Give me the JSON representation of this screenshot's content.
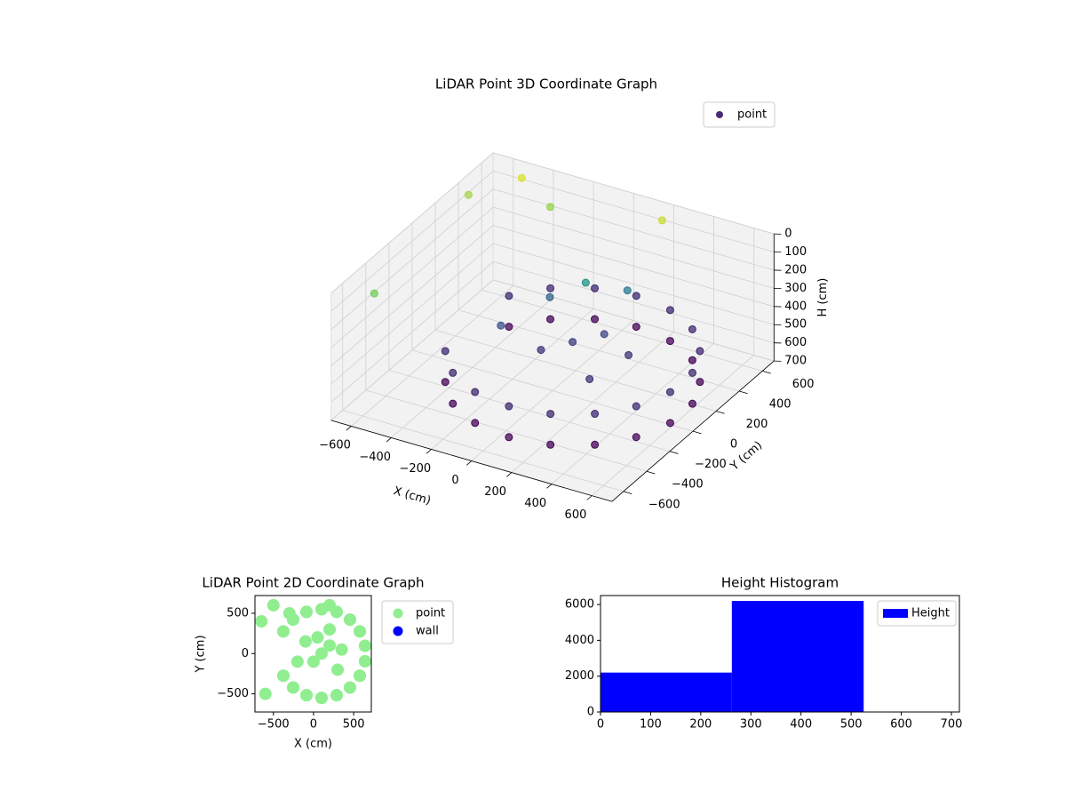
{
  "chart_data": [
    {
      "type": "scatter3d",
      "title": "LiDAR Point 3D Coordinate Graph",
      "xlabel": "X (cm)",
      "ylabel": "Y (cm)",
      "zlabel": "H (cm)",
      "xlim": [
        -700,
        700
      ],
      "ylim": [
        -700,
        700
      ],
      "zlim": [
        700,
        0
      ],
      "xticks": [
        {
          "value": -600,
          "label": "−600"
        },
        {
          "value": -400,
          "label": "−400"
        },
        {
          "value": -200,
          "label": "−200"
        },
        0,
        200,
        400,
        600
      ],
      "yticks": [
        {
          "value": -600,
          "label": "−600"
        },
        {
          "value": -400,
          "label": "−400"
        },
        {
          "value": -200,
          "label": "−200"
        },
        0,
        200,
        400,
        600
      ],
      "zticks": [
        0,
        100,
        200,
        300,
        400,
        500,
        600,
        700
      ],
      "colormap": "viridis",
      "legend": "upper right",
      "grid": true,
      "series": [
        {
          "name": "point",
          "color": "#472c7a",
          "x": [
            -376,
            -254,
            -88,
            100,
            288,
            454,
            576,
            642,
            642,
            576,
            454,
            288,
            100,
            -88,
            -254,
            -376,
            -376,
            -254,
            -88,
            100,
            288,
            454,
            576,
            642,
            642,
            576,
            454,
            288,
            100,
            -88,
            -254,
            -376,
            100,
            200,
            0,
            300,
            -100,
            200,
            50,
            -200,
            350,
            -650,
            -600,
            -500,
            -300,
            200
          ],
          "y": [
            -275,
            -421,
            -517,
            -550,
            -517,
            -421,
            -275,
            -96,
            96,
            275,
            421,
            517,
            550,
            517,
            421,
            275,
            -275,
            -421,
            -517,
            -550,
            -517,
            -421,
            -275,
            -96,
            96,
            275,
            421,
            517,
            550,
            517,
            421,
            275,
            0,
            100,
            -100,
            -200,
            150,
            300,
            200,
            -100,
            50,
            400,
            -500,
            600,
            500,
            600
          ],
          "z": [
            620,
            620,
            620,
            620,
            620,
            620,
            620,
            620,
            620,
            620,
            620,
            620,
            620,
            620,
            620,
            620,
            450,
            450,
            450,
            450,
            450,
            450,
            450,
            450,
            450,
            450,
            450,
            450,
            450,
            450,
            450,
            450,
            400,
            380,
            420,
            430,
            300,
            250,
            200,
            350,
            420,
            50,
            80,
            20,
            60,
            30
          ]
        }
      ]
    },
    {
      "type": "scatter",
      "title": "LiDAR Point 2D Coordinate Graph",
      "xlabel": "X (cm)",
      "ylabel": "Y (cm)",
      "xlim": [
        -730,
        720
      ],
      "ylim": [
        -725,
        720
      ],
      "xticks": [
        {
          "value": -500,
          "label": "−500"
        },
        0,
        500
      ],
      "yticks": [
        {
          "value": -500,
          "label": "−500"
        },
        0,
        500
      ],
      "legend": "outside right",
      "series": [
        {
          "name": "point",
          "color": "#90ee90",
          "x": [
            -376,
            -254,
            -88,
            100,
            288,
            454,
            576,
            642,
            642,
            576,
            454,
            288,
            100,
            -88,
            -254,
            -376,
            -376,
            -254,
            -88,
            100,
            288,
            454,
            576,
            642,
            642,
            576,
            454,
            288,
            100,
            -88,
            -254,
            -376,
            100,
            200,
            0,
            300,
            -100,
            200,
            50,
            -200,
            350,
            -650,
            -600,
            -500,
            -300,
            200
          ],
          "y": [
            -275,
            -421,
            -517,
            -550,
            -517,
            -421,
            -275,
            -96,
            96,
            275,
            421,
            517,
            550,
            517,
            421,
            275,
            -275,
            -421,
            -517,
            -550,
            -517,
            -421,
            -275,
            -96,
            96,
            275,
            421,
            517,
            550,
            517,
            421,
            275,
            0,
            100,
            -100,
            -200,
            150,
            300,
            200,
            -100,
            50,
            400,
            -500,
            600,
            500,
            600
          ]
        },
        {
          "name": "wall",
          "color": "#0000ff",
          "x": [],
          "y": []
        }
      ]
    },
    {
      "type": "histogram",
      "title": "Height Histogram",
      "bins": [
        0,
        262,
        525,
        787
      ],
      "series": [
        {
          "name": "Height",
          "color": "#0000ff",
          "values": [
            2200,
            6200,
            0
          ]
        }
      ],
      "xlim": [
        0,
        716
      ],
      "ylim": [
        0,
        6500
      ],
      "xticks": [
        0,
        100,
        200,
        300,
        400,
        500,
        600,
        700
      ],
      "yticks": [
        0,
        2000,
        4000,
        6000
      ],
      "legend": "upper right"
    }
  ]
}
